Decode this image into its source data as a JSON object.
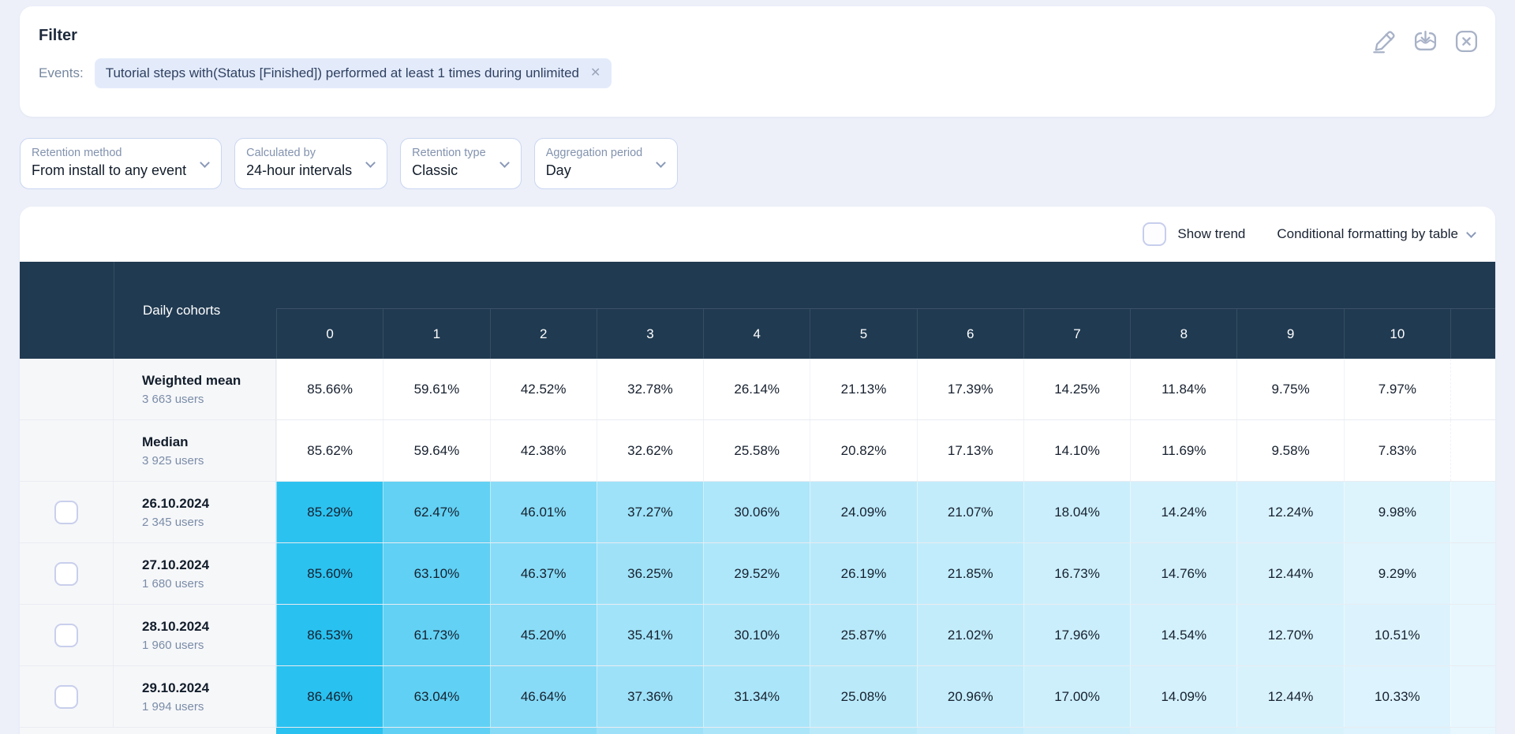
{
  "filter": {
    "title": "Filter",
    "events_label": "Events:",
    "event_chip": "Tutorial steps with(Status [Finished]) performed at least 1 times during unlimited",
    "icons": [
      "edit-icon",
      "export-icon",
      "close-icon"
    ]
  },
  "controls": [
    {
      "label": "Retention method",
      "value": "From install to any event"
    },
    {
      "label": "Calculated by",
      "value": "24-hour intervals"
    },
    {
      "label": "Retention type",
      "value": "Classic"
    },
    {
      "label": "Aggregation period",
      "value": "Day"
    }
  ],
  "toolbar": {
    "show_trend_label": "Show trend",
    "show_trend_checked": false,
    "formatting_label": "Conditional formatting by table"
  },
  "table": {
    "corner_label": "Daily cohorts",
    "day_columns": [
      "0",
      "1",
      "2",
      "3",
      "4",
      "5",
      "6",
      "7",
      "8",
      "9",
      "10"
    ],
    "value_suffix": "%",
    "summary_rows": [
      {
        "label": "Weighted mean",
        "users": "3 663 users",
        "values": [
          85.66,
          59.61,
          42.52,
          32.78,
          26.14,
          21.13,
          17.39,
          14.25,
          11.84,
          9.75,
          7.97
        ]
      },
      {
        "label": "Median",
        "users": "3 925 users",
        "values": [
          85.62,
          59.64,
          42.38,
          32.62,
          25.58,
          20.82,
          17.13,
          14.1,
          11.69,
          9.58,
          7.83
        ]
      }
    ],
    "cohort_rows": [
      {
        "date": "26.10.2024",
        "users": "2 345 users",
        "values": [
          85.29,
          62.47,
          46.01,
          37.27,
          30.06,
          24.09,
          21.07,
          18.04,
          14.24,
          12.24,
          9.98
        ]
      },
      {
        "date": "27.10.2024",
        "users": "1 680 users",
        "values": [
          85.6,
          63.1,
          46.37,
          36.25,
          29.52,
          26.19,
          21.85,
          16.73,
          14.76,
          12.44,
          9.29
        ]
      },
      {
        "date": "28.10.2024",
        "users": "1 960 users",
        "values": [
          86.53,
          61.73,
          45.2,
          35.41,
          30.1,
          25.87,
          21.02,
          17.96,
          14.54,
          12.7,
          10.51
        ]
      },
      {
        "date": "29.10.2024",
        "users": "1 994 users",
        "values": [
          86.46,
          63.04,
          46.64,
          37.36,
          31.34,
          25.08,
          20.96,
          17.0,
          14.09,
          12.44,
          10.33
        ]
      }
    ],
    "heat_high_color": "#29C1F0",
    "heat_low_color": "#DFF4FD",
    "partial_col_color": "#E7F7FD",
    "header_bg": "#203A51"
  }
}
